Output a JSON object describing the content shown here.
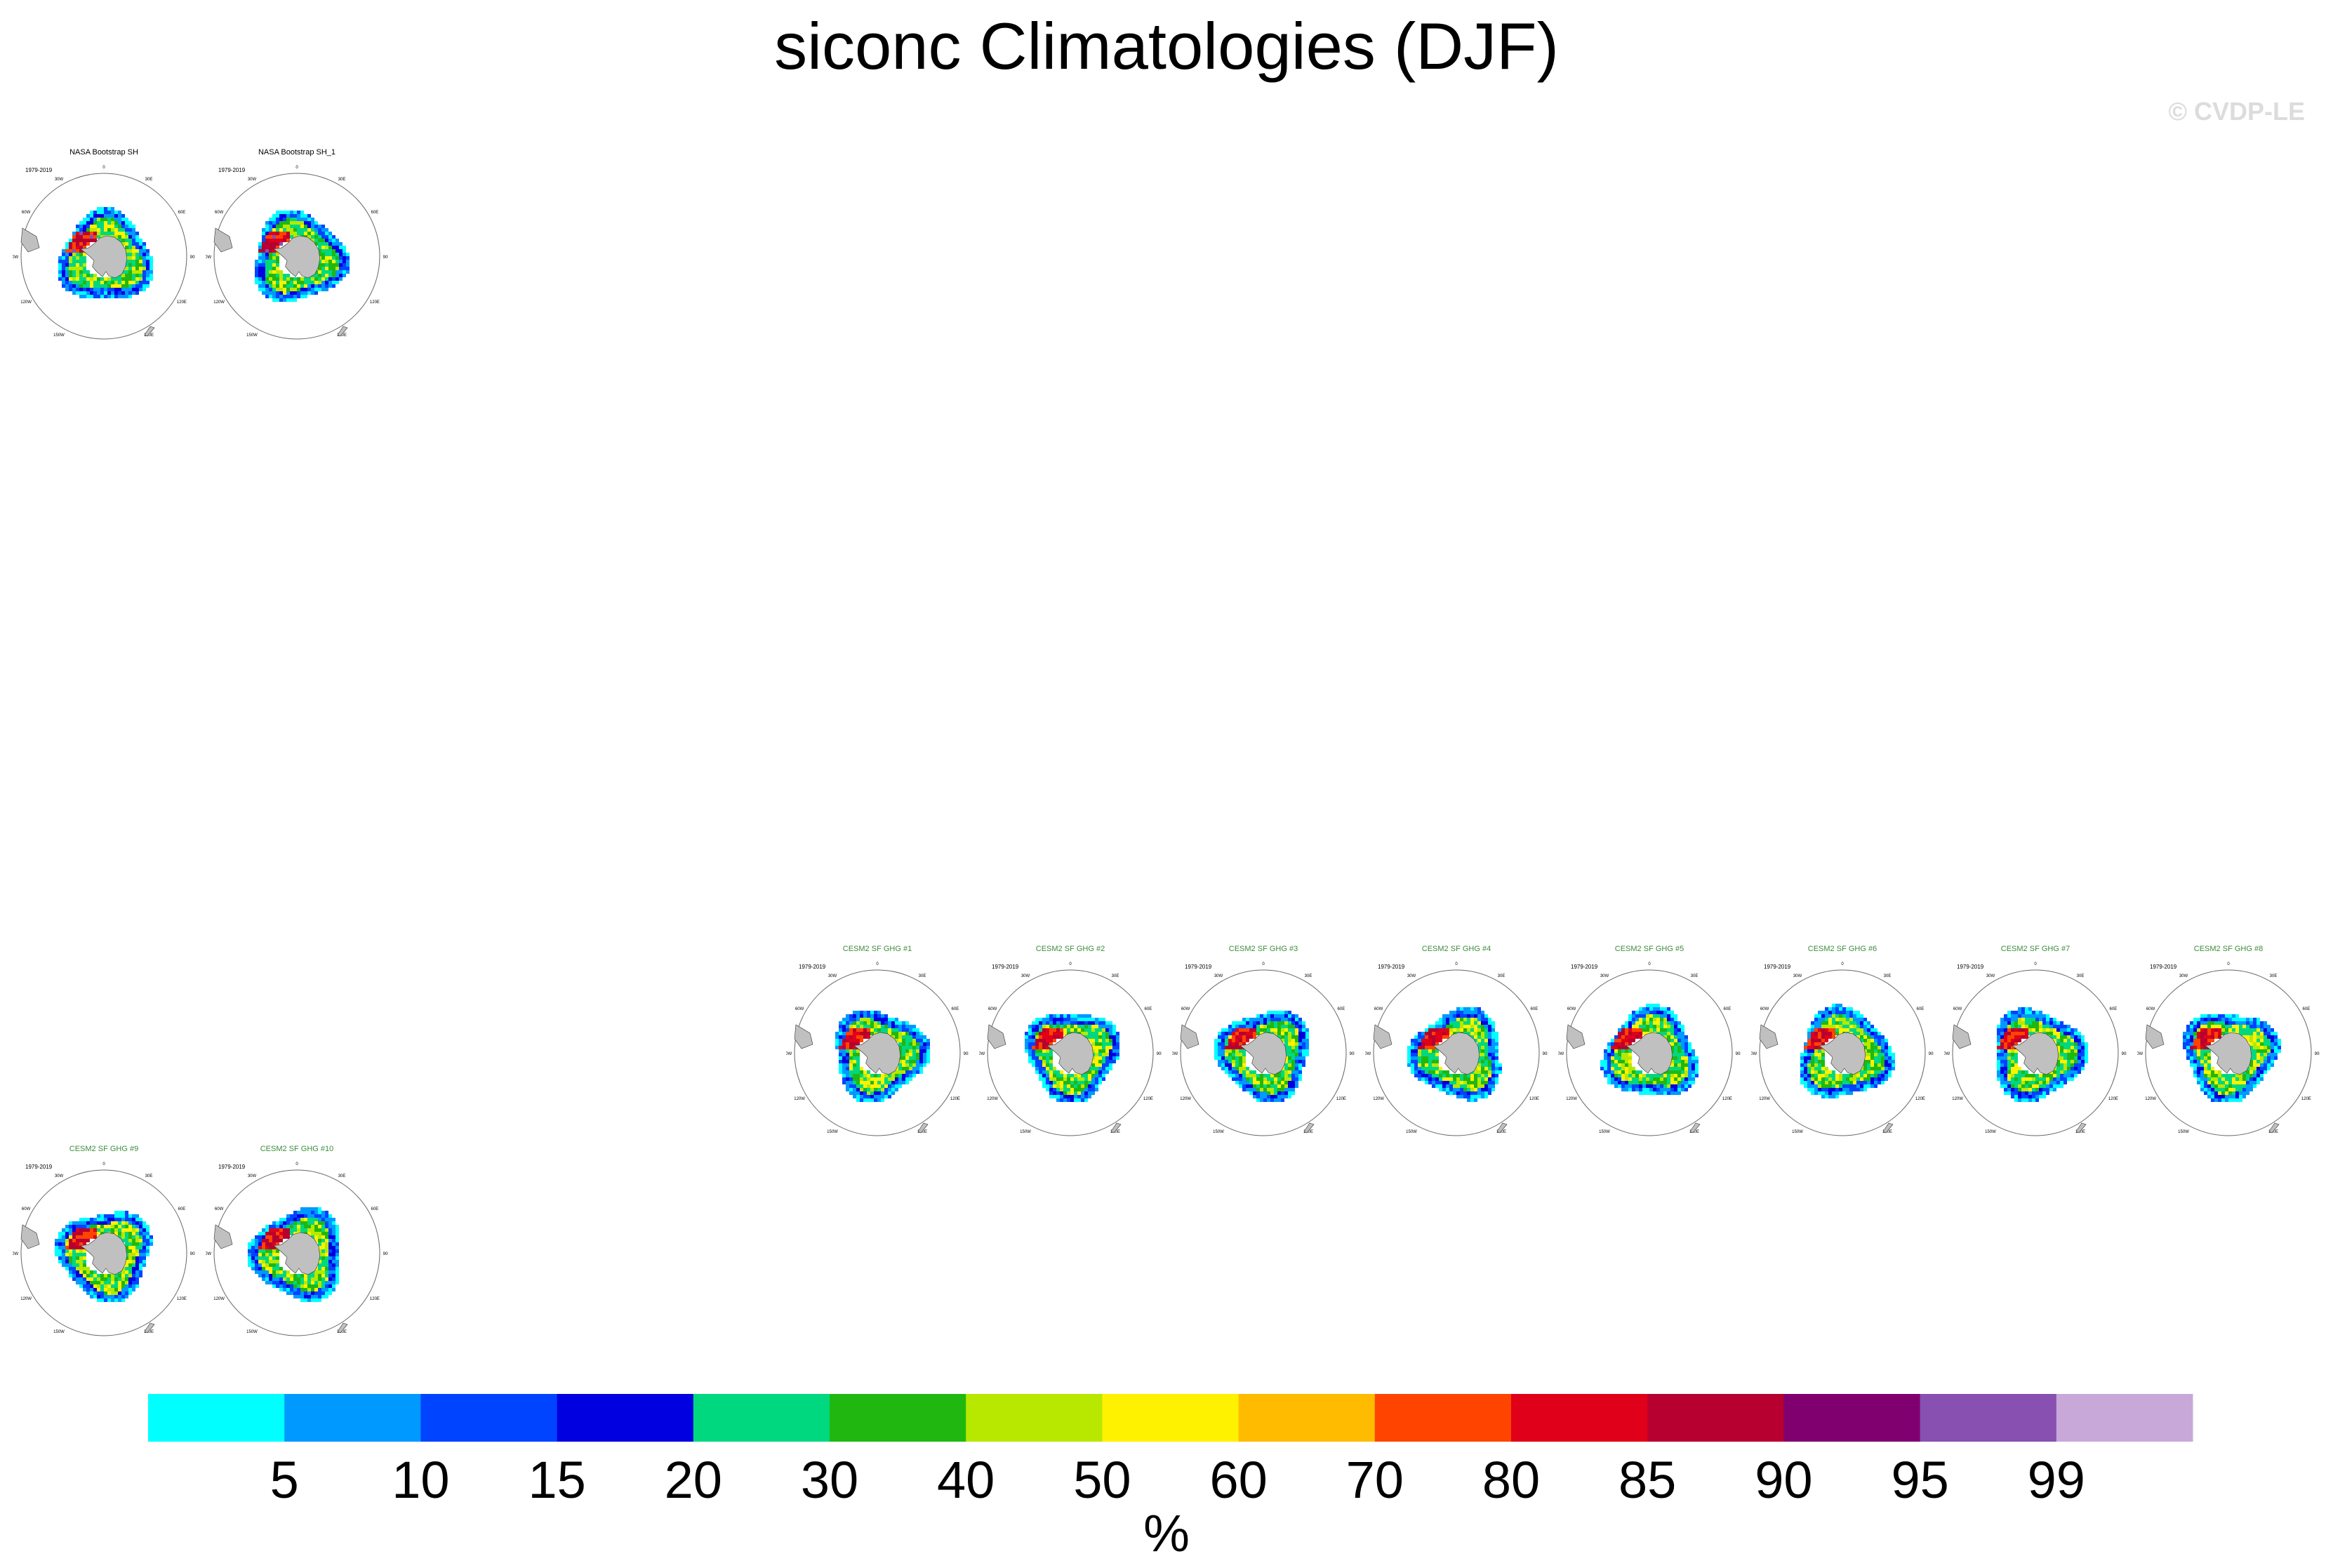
{
  "page_title": "siconc Climatologies (DJF)",
  "copyright": "© CVDP-LE",
  "colors": {
    "obs_title": "#000000",
    "model_title": "#3c8c3c",
    "land": "#c0c0c0",
    "circle": "#666666"
  },
  "panel_labels": {
    "period": "1979-2019",
    "lon_ticks": [
      "0",
      "30E",
      "60E",
      "90E",
      "120E",
      "150E",
      "180",
      "150W",
      "120W",
      "90W",
      "60W",
      "30W"
    ]
  },
  "chart_data": {
    "type": "heatmap",
    "title": "siconc Climatologies (DJF)",
    "variable": "siconc",
    "season": "DJF",
    "projection": "south-polar-stereographic",
    "units_label": "%",
    "colorbar": {
      "levels": [
        5,
        10,
        15,
        20,
        30,
        40,
        50,
        60,
        70,
        80,
        85,
        90,
        95,
        99
      ],
      "labels": [
        "5",
        "10",
        "15",
        "20",
        "30",
        "40",
        "50",
        "60",
        "70",
        "80",
        "85",
        "90",
        "95",
        "99"
      ],
      "colors": [
        "#00ffff",
        "#0099ff",
        "#0044ff",
        "#0000e0",
        "#00d880",
        "#20b810",
        "#b8e800",
        "#fff200",
        "#ffbb00",
        "#ff4400",
        "#e0001a",
        "#b80030",
        "#800070",
        "#8850b0",
        "#c8a8d8"
      ]
    },
    "panels": [
      {
        "title": "NASA Bootstrap SH",
        "period": "1979-2019",
        "kind": "obs"
      },
      {
        "title": "NASA Bootstrap SH_1",
        "period": "1979-2019",
        "kind": "obs"
      },
      {
        "title": "CESM2 SF GHG #1",
        "period": "1979-2019",
        "kind": "model"
      },
      {
        "title": "CESM2 SF GHG #2",
        "period": "1979-2019",
        "kind": "model"
      },
      {
        "title": "CESM2 SF GHG #3",
        "period": "1979-2019",
        "kind": "model"
      },
      {
        "title": "CESM2 SF GHG #4",
        "period": "1979-2019",
        "kind": "model"
      },
      {
        "title": "CESM2 SF GHG #5",
        "period": "1979-2019",
        "kind": "model"
      },
      {
        "title": "CESM2 SF GHG #6",
        "period": "1979-2019",
        "kind": "model"
      },
      {
        "title": "CESM2 SF GHG #7",
        "period": "1979-2019",
        "kind": "model"
      },
      {
        "title": "CESM2 SF GHG #8",
        "period": "1979-2019",
        "kind": "model"
      },
      {
        "title": "CESM2 SF GHG #9",
        "period": "1979-2019",
        "kind": "model"
      },
      {
        "title": "CESM2 SF GHG #10",
        "period": "1979-2019",
        "kind": "model"
      }
    ]
  }
}
